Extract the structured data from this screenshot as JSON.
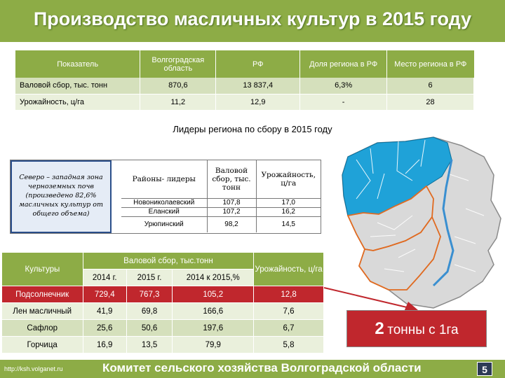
{
  "header": {
    "title": "Производство масличных культур в 2015 году"
  },
  "summary_table": {
    "headers": [
      "Показатель",
      "Волгоградская область",
      "РФ",
      "Доля региона в РФ",
      "Место региона в РФ"
    ],
    "rows": [
      [
        "Валовой сбор, тыс. тонн",
        "870,6",
        "13 837,4",
        "6,3%",
        "6"
      ],
      [
        "Урожайность, ц/га",
        "11,2",
        "12,9",
        "-",
        "28"
      ]
    ]
  },
  "leaders": {
    "title": "Лидеры региона по сбору в 2015 году",
    "note": "Северо – западная зона черноземных почв (произведено 82,6% масличных культур от общего объема)",
    "headers": [
      "Районы- лидеры",
      "Валовой сбор, тыс. тонн",
      "Урожайность, ц/га"
    ],
    "rows": [
      [
        "Новониколаевский",
        "107,8",
        "17,0"
      ],
      [
        "Еланский",
        "107,2",
        "16,2"
      ],
      [
        "Урюпинский",
        "98,2",
        "14,5"
      ]
    ]
  },
  "crops_table": {
    "col_crop": "Культуры",
    "col_gross": "Валовой сбор, тыс.тонн",
    "col_yield": "Урожайность, ц/га",
    "sub_headers": [
      "2014 г.",
      "2015 г.",
      "2014 к 2015,%"
    ],
    "rows": [
      [
        "Подсолнечник",
        "729,4",
        "767,3",
        "105,2",
        "12,8"
      ],
      [
        "Лен масличный",
        "41,9",
        "69,8",
        "166,6",
        "7,6"
      ],
      [
        "Сафлор",
        "25,6",
        "50,6",
        "197,6",
        "6,7"
      ],
      [
        "Горчица",
        "16,9",
        "13,5",
        "79,9",
        "5,8"
      ]
    ]
  },
  "highlight": {
    "big": "2",
    "rest": "тонны с 1га"
  },
  "footer": {
    "url": "http://ksh.volganet.ru",
    "title": "Комитет сельского хозяйства Волгоградской области",
    "page_number": "5"
  },
  "colors": {
    "header_green": "#8dac46",
    "highlight_red": "#c0272d",
    "map_blue": "#1fa2d8",
    "map_orange": "#e06a20"
  }
}
